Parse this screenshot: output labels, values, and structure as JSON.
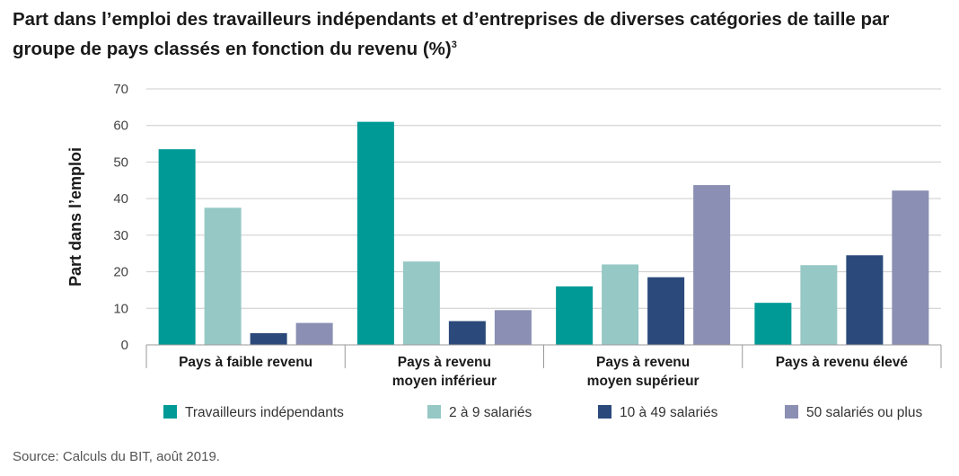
{
  "title": {
    "text": "Part dans l’emploi des travailleurs indépendants et d’entreprises de diverses catégories de taille par groupe de pays classés en fonction du revenu (%)",
    "footnote_mark": "3"
  },
  "source": "Source: Calculs du BIT, août 2019.",
  "chart_data": {
    "type": "bar",
    "ylabel": "Part dans l’emploi",
    "xlabel": "",
    "ylim": [
      0,
      70
    ],
    "yticks": [
      0,
      10,
      20,
      30,
      40,
      50,
      60,
      70
    ],
    "grid": true,
    "legend_position": "bottom",
    "categories": [
      [
        "Pays à faible revenu"
      ],
      [
        "Pays à revenu",
        "moyen inférieur"
      ],
      [
        "Pays à revenu",
        "moyen supérieur"
      ],
      [
        "Pays à revenu élevé"
      ]
    ],
    "series": [
      {
        "name": "Travailleurs indépendants",
        "color": "#009a96",
        "values": [
          53.5,
          61,
          16,
          11.5
        ]
      },
      {
        "name": "2 à 9 salariés",
        "color": "#96c8c5",
        "values": [
          37.5,
          22.8,
          22,
          21.8
        ]
      },
      {
        "name": "10 à 49 salariés",
        "color": "#2b4a7b",
        "values": [
          3.2,
          6.5,
          18.5,
          24.5
        ]
      },
      {
        "name": "50 salariés ou plus",
        "color": "#8a8fb3",
        "values": [
          6,
          9.5,
          43.7,
          42.2
        ]
      }
    ]
  }
}
